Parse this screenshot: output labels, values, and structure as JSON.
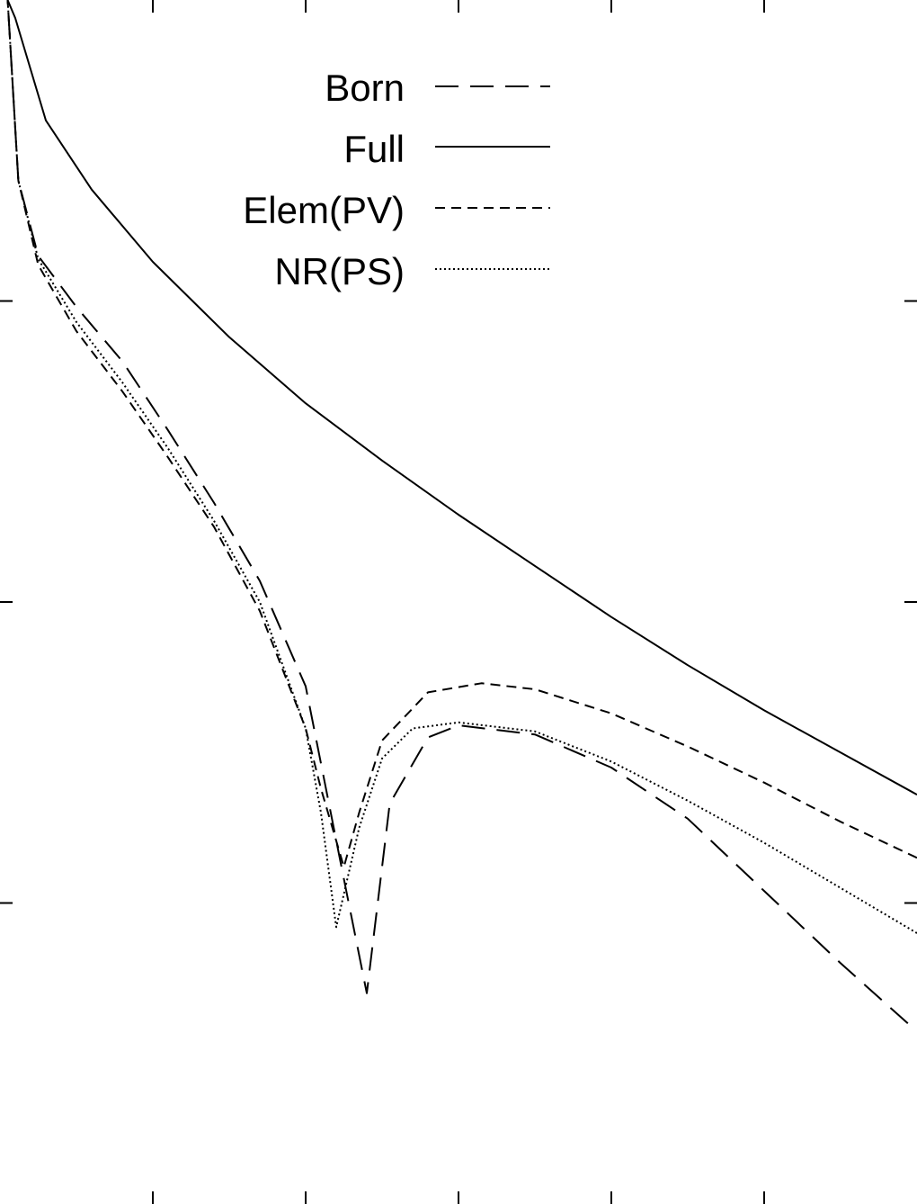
{
  "chart_data": {
    "type": "line",
    "title": "",
    "xlabel": "",
    "ylabel": "",
    "xlim": [
      0,
      6
    ],
    "ylim": [
      0,
      4
    ],
    "x_ticks": [
      1,
      2,
      3,
      4,
      5
    ],
    "y_ticks": [
      1,
      2,
      3
    ],
    "grid": false,
    "legend_position": "top",
    "mirrored": true,
    "series": [
      {
        "name": "Born",
        "dash": "long-dash",
        "points": [
          [
            0.06,
            0.6
          ],
          [
            0.5,
            0.8
          ],
          [
            1.0,
            1.04
          ],
          [
            1.5,
            1.28
          ],
          [
            2.0,
            1.45
          ],
          [
            2.5,
            1.56
          ],
          [
            3.0,
            1.59
          ],
          [
            3.2,
            1.55
          ],
          [
            3.45,
            1.33
          ],
          [
            3.6,
            0.7
          ],
          [
            3.75,
            1.08
          ],
          [
            4.0,
            1.72
          ],
          [
            4.3,
            2.07
          ],
          [
            4.6,
            2.33
          ],
          [
            4.9,
            2.57
          ],
          [
            5.2,
            2.8
          ],
          [
            5.5,
            2.98
          ],
          [
            5.75,
            3.15
          ],
          [
            5.88,
            3.4
          ],
          [
            5.95,
            4.0
          ]
        ]
      },
      {
        "name": "Full",
        "dash": "solid",
        "points": [
          [
            0.0,
            1.36
          ],
          [
            0.5,
            1.5
          ],
          [
            1.0,
            1.64
          ],
          [
            1.5,
            1.79
          ],
          [
            2.0,
            1.95
          ],
          [
            2.5,
            2.12
          ],
          [
            3.0,
            2.29
          ],
          [
            3.5,
            2.47
          ],
          [
            4.0,
            2.66
          ],
          [
            4.5,
            2.88
          ],
          [
            5.0,
            3.13
          ],
          [
            5.4,
            3.37
          ],
          [
            5.7,
            3.6
          ],
          [
            5.9,
            3.94
          ],
          [
            5.95,
            4.0
          ]
        ]
      },
      {
        "name": "Elem(PV)",
        "dash": "short-dash",
        "points": [
          [
            0.0,
            1.15
          ],
          [
            0.5,
            1.27
          ],
          [
            1.0,
            1.4
          ],
          [
            1.5,
            1.52
          ],
          [
            2.0,
            1.63
          ],
          [
            2.5,
            1.71
          ],
          [
            2.85,
            1.73
          ],
          [
            3.2,
            1.7
          ],
          [
            3.5,
            1.54
          ],
          [
            3.65,
            1.3
          ],
          [
            3.75,
            1.12
          ],
          [
            3.9,
            1.38
          ],
          [
            4.0,
            1.58
          ],
          [
            4.3,
            1.97
          ],
          [
            4.6,
            2.25
          ],
          [
            4.9,
            2.48
          ],
          [
            5.2,
            2.7
          ],
          [
            5.5,
            2.9
          ],
          [
            5.75,
            3.12
          ],
          [
            5.88,
            3.4
          ],
          [
            5.95,
            4.0
          ]
        ]
      },
      {
        "name": "NR(PS)",
        "dash": "dotted",
        "points": [
          [
            0.0,
            0.9
          ],
          [
            0.5,
            1.05
          ],
          [
            1.0,
            1.2
          ],
          [
            1.5,
            1.34
          ],
          [
            2.0,
            1.47
          ],
          [
            2.5,
            1.57
          ],
          [
            3.0,
            1.6
          ],
          [
            3.3,
            1.58
          ],
          [
            3.5,
            1.48
          ],
          [
            3.65,
            1.25
          ],
          [
            3.8,
            0.92
          ],
          [
            3.9,
            1.3
          ],
          [
            4.0,
            1.58
          ],
          [
            4.3,
            2.0
          ],
          [
            4.6,
            2.27
          ],
          [
            4.9,
            2.51
          ],
          [
            5.2,
            2.73
          ],
          [
            5.5,
            2.93
          ],
          [
            5.75,
            3.14
          ],
          [
            5.88,
            3.4
          ],
          [
            5.95,
            4.0
          ]
        ]
      }
    ]
  }
}
